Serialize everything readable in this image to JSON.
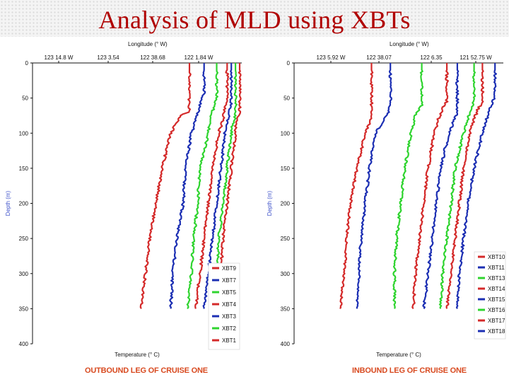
{
  "slide": {
    "title": "Analysis of MLD using XBTs"
  },
  "captions": {
    "left": "OUTBOUND LEG OF CRUISE ONE",
    "right": "INBOUND LEG OF CRUISE ONE"
  },
  "colors": {
    "red": "#d42a2a",
    "blue": "#1c2fb3",
    "green": "#2fd42f",
    "title": "#b00000",
    "axis_label": "#3b4fc9"
  },
  "chart_data": [
    {
      "type": "line",
      "top_axis_label": "Longitude (° W)",
      "top_ticks": [
        "123 14.8 W",
        "123 3.54",
        "122 38.68",
        "122 1.84 W"
      ],
      "xlabel": "Temperature (° C)",
      "ylabel": "Depth (m)",
      "yticks": [
        0,
        50,
        100,
        150,
        200,
        250,
        300,
        350,
        400
      ],
      "ylim": [
        0,
        400
      ],
      "y_inverted": true,
      "grid": false,
      "legend_position": "bottom-right",
      "x_note": "profiles are offset horizontally; values are relative plot position (0-100)",
      "series": [
        {
          "name": "XBT9",
          "color": "red",
          "points": [
            [
              0,
              75
            ],
            [
              70,
              75
            ],
            [
              73,
              72
            ],
            [
              75,
              71
            ],
            [
              80,
              70
            ],
            [
              100,
              66
            ],
            [
              150,
              62
            ],
            [
              200,
              59
            ],
            [
              250,
              56
            ],
            [
              300,
              54
            ],
            [
              350,
              52
            ]
          ]
        },
        {
          "name": "XBT7",
          "color": "blue",
          "points": [
            [
              0,
              82
            ],
            [
              45,
              82
            ],
            [
              50,
              81
            ],
            [
              60,
              80
            ],
            [
              100,
              76
            ],
            [
              150,
              73
            ],
            [
              200,
              72
            ],
            [
              250,
              69
            ],
            [
              300,
              67
            ],
            [
              350,
              66
            ]
          ]
        },
        {
          "name": "XBT5",
          "color": "green",
          "points": [
            [
              0,
              88
            ],
            [
              50,
              88
            ],
            [
              60,
              87
            ],
            [
              80,
              85
            ],
            [
              100,
              84
            ],
            [
              150,
              80
            ],
            [
              200,
              79
            ],
            [
              250,
              77
            ],
            [
              300,
              76
            ],
            [
              350,
              74
            ]
          ]
        },
        {
          "name": "XBT4",
          "color": "red",
          "points": [
            [
              0,
              93
            ],
            [
              55,
              93
            ],
            [
              63,
              92
            ],
            [
              80,
              91
            ],
            [
              100,
              89
            ],
            [
              150,
              86
            ],
            [
              200,
              84
            ],
            [
              250,
              82
            ],
            [
              300,
              80
            ],
            [
              350,
              78
            ]
          ]
        },
        {
          "name": "XBT3",
          "color": "blue",
          "points": [
            [
              0,
              95
            ],
            [
              60,
              95
            ],
            [
              70,
              94
            ],
            [
              90,
              93
            ],
            [
              100,
              92
            ],
            [
              150,
              90
            ],
            [
              200,
              88
            ],
            [
              250,
              86
            ],
            [
              300,
              84
            ],
            [
              350,
              82
            ]
          ]
        },
        {
          "name": "XBT2",
          "color": "green",
          "points": [
            [
              0,
              97
            ],
            [
              75,
              97
            ],
            [
              85,
              96
            ],
            [
              95,
              95
            ],
            [
              100,
              95
            ],
            [
              150,
              93
            ],
            [
              200,
              91
            ],
            [
              250,
              89
            ],
            [
              300,
              88
            ],
            [
              350,
              86
            ]
          ]
        },
        {
          "name": "XBT1",
          "color": "red",
          "points": [
            [
              0,
              99
            ],
            [
              75,
              99
            ],
            [
              80,
              98
            ],
            [
              90,
              97
            ],
            [
              100,
              97
            ],
            [
              150,
              95
            ],
            [
              200,
              93
            ],
            [
              250,
              91
            ],
            [
              300,
              90
            ],
            [
              350,
              89
            ]
          ]
        }
      ]
    },
    {
      "type": "line",
      "top_axis_label": "Longitude (° W)",
      "top_ticks": [
        "123 5.92 W",
        "122 38.07",
        "122 6.35",
        "121 52.75 W"
      ],
      "xlabel": "Temperature (° C)",
      "ylabel": "Depth (m)",
      "yticks": [
        0,
        50,
        100,
        150,
        200,
        250,
        300,
        350,
        400
      ],
      "ylim": [
        0,
        400
      ],
      "y_inverted": true,
      "grid": false,
      "legend_position": "bottom-right",
      "x_note": "profiles are offset horizontally; values are relative plot position (0-100)",
      "series": [
        {
          "name": "XBT10",
          "color": "red",
          "points": [
            [
              0,
              37
            ],
            [
              75,
              37
            ],
            [
              85,
              36
            ],
            [
              100,
              34
            ],
            [
              150,
              30
            ],
            [
              200,
              27
            ],
            [
              250,
              25
            ],
            [
              300,
              24
            ],
            [
              350,
              22
            ]
          ]
        },
        {
          "name": "XBT11",
          "color": "blue",
          "points": [
            [
              0,
              46
            ],
            [
              60,
              46
            ],
            [
              70,
              45
            ],
            [
              85,
              42
            ],
            [
              100,
              39
            ],
            [
              150,
              36
            ],
            [
              200,
              34
            ],
            [
              250,
              32
            ],
            [
              300,
              31
            ],
            [
              350,
              30
            ]
          ]
        },
        {
          "name": "XBT13",
          "color": "green",
          "points": [
            [
              0,
              61
            ],
            [
              60,
              61
            ],
            [
              65,
              60
            ],
            [
              75,
              58
            ],
            [
              100,
              56
            ],
            [
              150,
              53
            ],
            [
              200,
              51
            ],
            [
              250,
              49
            ],
            [
              300,
              48
            ],
            [
              350,
              48
            ]
          ]
        },
        {
          "name": "XBT14",
          "color": "red",
          "points": [
            [
              0,
              73
            ],
            [
              55,
              73
            ],
            [
              65,
              71
            ],
            [
              80,
              69
            ],
            [
              100,
              67
            ],
            [
              150,
              64
            ],
            [
              200,
              62
            ],
            [
              250,
              60
            ],
            [
              300,
              58
            ],
            [
              350,
              57
            ]
          ]
        },
        {
          "name": "XBT15",
          "color": "blue",
          "points": [
            [
              0,
              78
            ],
            [
              70,
              78
            ],
            [
              85,
              76
            ],
            [
              100,
              74
            ],
            [
              150,
              70
            ],
            [
              200,
              68
            ],
            [
              250,
              66
            ],
            [
              300,
              64
            ],
            [
              350,
              62
            ]
          ]
        },
        {
          "name": "XBT16",
          "color": "green",
          "points": [
            [
              0,
              86
            ],
            [
              55,
              86
            ],
            [
              70,
              84
            ],
            [
              90,
              82
            ],
            [
              100,
              81
            ],
            [
              150,
              77
            ],
            [
              200,
              75
            ],
            [
              250,
              73
            ],
            [
              300,
              71
            ],
            [
              350,
              70
            ]
          ]
        },
        {
          "name": "XBT17",
          "color": "red",
          "points": [
            [
              0,
              90
            ],
            [
              55,
              90
            ],
            [
              65,
              88
            ],
            [
              80,
              86
            ],
            [
              100,
              84
            ],
            [
              150,
              81
            ],
            [
              200,
              79
            ],
            [
              250,
              77
            ],
            [
              300,
              75
            ],
            [
              350,
              73
            ]
          ]
        },
        {
          "name": "XBT18",
          "color": "blue",
          "points": [
            [
              0,
              96
            ],
            [
              45,
              96
            ],
            [
              55,
              95
            ],
            [
              70,
              93
            ],
            [
              100,
              90
            ],
            [
              150,
              86
            ],
            [
              200,
              83
            ],
            [
              250,
              81
            ],
            [
              300,
              79
            ],
            [
              350,
              78
            ]
          ]
        }
      ]
    }
  ]
}
